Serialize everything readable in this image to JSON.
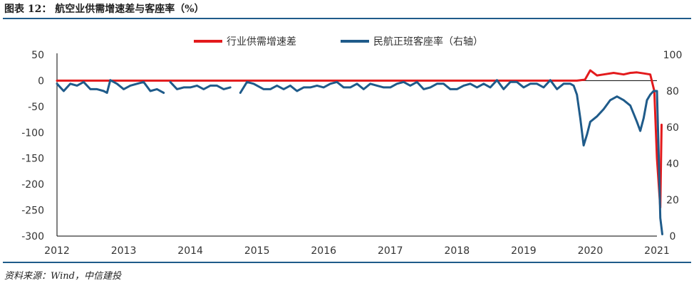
{
  "figure": {
    "title": "图表 12： 航空业供需增速差与客座率（%）",
    "source": "资料来源：Wind，中信建投"
  },
  "colors": {
    "series1": "#e31a1c",
    "series2": "#1f5b8a",
    "axis": "#000000",
    "rule": "#1f5b8a"
  },
  "chart_data": {
    "type": "line",
    "grid": false,
    "legend_position": "top",
    "x_ticks": [
      "2012",
      "2013",
      "2014",
      "2015",
      "2016",
      "2017",
      "2018",
      "2019",
      "2020",
      "2021"
    ],
    "y_left": {
      "lim": [
        -300,
        50
      ],
      "ticks": [
        "50",
        "0",
        "-50",
        "-100",
        "-150",
        "-200",
        "-250",
        "-300"
      ],
      "tick_values": [
        50,
        0,
        -50,
        -100,
        -150,
        -200,
        -250,
        -300
      ]
    },
    "y_right": {
      "lim": [
        0,
        100
      ],
      "ticks": [
        "100",
        "80",
        "60",
        "40",
        "20",
        "0"
      ],
      "tick_values": [
        100,
        80,
        60,
        40,
        20,
        0
      ]
    },
    "series": [
      {
        "name": "行业供需增速差",
        "axis": "left",
        "color": "#e31a1c",
        "x": [
          2012.0,
          2012.5,
          2013.0,
          2013.5,
          2014.0,
          2014.5,
          2015.0,
          2015.5,
          2016.0,
          2016.5,
          2017.0,
          2017.5,
          2018.0,
          2018.5,
          2019.0,
          2019.5,
          2019.8,
          2019.92,
          2020.0,
          2020.1,
          2020.2,
          2020.35,
          2020.5,
          2020.6,
          2020.7,
          2020.8,
          2020.9,
          2020.96,
          2021.0,
          2021.05,
          2021.07
        ],
        "y": [
          0,
          0,
          0,
          0,
          0,
          0,
          0,
          0,
          0,
          0,
          0,
          0,
          0,
          0,
          0,
          0,
          0,
          2,
          20,
          10,
          12,
          15,
          12,
          15,
          16,
          14,
          12,
          -20,
          -150,
          -245,
          -85
        ]
      },
      {
        "name": "民航正班客座率（右轴）",
        "axis": "right",
        "color": "#1f5b8a",
        "segments": [
          {
            "x": [
              2012.0,
              2012.1,
              2012.2,
              2012.3,
              2012.4,
              2012.5,
              2012.6,
              2012.7,
              2012.75,
              2012.8,
              2012.9,
              2013.0,
              2013.1,
              2013.2,
              2013.3,
              2013.4,
              2013.5,
              2013.6
            ],
            "y": [
              84,
              80,
              84,
              83,
              85,
              81,
              81,
              80,
              79,
              86,
              84,
              81,
              83,
              84,
              85,
              80,
              81,
              79
            ]
          },
          {
            "x": [
              2013.7,
              2013.8,
              2013.9,
              2014.0,
              2014.1,
              2014.2,
              2014.3,
              2014.4,
              2014.5,
              2014.6
            ],
            "y": [
              85,
              81,
              82,
              82,
              83,
              81,
              83,
              83,
              81,
              82
            ]
          },
          {
            "x": [
              2014.75,
              2014.85,
              2014.95,
              2015.1,
              2015.2,
              2015.3,
              2015.4,
              2015.5,
              2015.6,
              2015.7,
              2015.8,
              2015.9,
              2016.0,
              2016.1,
              2016.2,
              2016.3,
              2016.4,
              2016.5,
              2016.6,
              2016.7,
              2016.8,
              2016.9,
              2017.0,
              2017.1,
              2017.2,
              2017.3,
              2017.4,
              2017.5,
              2017.6,
              2017.7,
              2017.8,
              2017.9,
              2018.0,
              2018.1,
              2018.2,
              2018.3,
              2018.4,
              2018.5,
              2018.6,
              2018.7,
              2018.8,
              2018.9,
              2019.0,
              2019.1,
              2019.2,
              2019.3,
              2019.4,
              2019.5,
              2019.6,
              2019.7,
              2019.75,
              2019.8,
              2019.85,
              2019.9,
              2019.95,
              2020.0,
              2020.1,
              2020.2,
              2020.3,
              2020.4,
              2020.5,
              2020.6,
              2020.7,
              2020.75,
              2020.8,
              2020.85,
              2020.9,
              2020.95,
              2021.0,
              2021.03,
              2021.05,
              2021.08
            ],
            "y": [
              79,
              85,
              84,
              81,
              81,
              83,
              81,
              83,
              80,
              82,
              82,
              83,
              82,
              84,
              85,
              82,
              82,
              84,
              81,
              84,
              83,
              82,
              82,
              84,
              85,
              83,
              85,
              81,
              82,
              84,
              84,
              81,
              81,
              83,
              84,
              82,
              84,
              82,
              86,
              81,
              85,
              85,
              82,
              84,
              84,
              82,
              86,
              81,
              84,
              84,
              83,
              78,
              65,
              50,
              56,
              63,
              66,
              70,
              75,
              77,
              75,
              72,
              63,
              58,
              65,
              75,
              78,
              80,
              80,
              40,
              10,
              1
            ]
          }
        ]
      }
    ]
  }
}
